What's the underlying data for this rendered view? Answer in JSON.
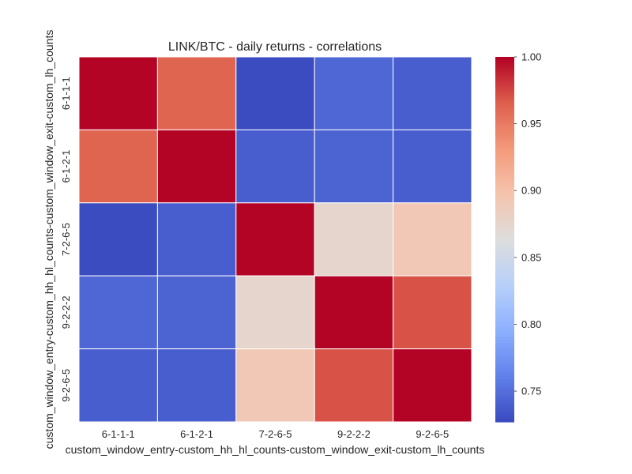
{
  "chart_data": {
    "type": "heatmap",
    "title": "LINK/BTC - daily returns - correlations",
    "xlabel": "custom_window_entry-custom_hh_hl_counts-custom_window_exit-custom_lh_counts",
    "ylabel": "custom_window_entry-custom_hh_hl_counts-custom_window_exit-custom_lh_counts",
    "x_categories": [
      "6-1-1-1",
      "6-1-2-1",
      "7-2-6-5",
      "9-2-2-2",
      "9-2-6-5"
    ],
    "y_categories": [
      "6-1-1-1",
      "6-1-2-1",
      "7-2-6-5",
      "9-2-2-2",
      "9-2-6-5"
    ],
    "values": [
      [
        1.0,
        0.963,
        0.727,
        0.744,
        0.738
      ],
      [
        0.963,
        1.0,
        0.738,
        0.742,
        0.738
      ],
      [
        0.727,
        0.738,
        1.0,
        0.875,
        0.892
      ],
      [
        0.744,
        0.742,
        0.875,
        1.0,
        0.971
      ],
      [
        0.738,
        0.738,
        0.892,
        0.971,
        1.0
      ]
    ],
    "colormap": "coolwarm",
    "vmin": 0.727,
    "vmax": 1.0,
    "colorbar_ticks": [
      "0.75",
      "0.80",
      "0.85",
      "0.90",
      "0.95",
      "1.00"
    ],
    "grid": false,
    "cell_border_color": "#ffffff"
  }
}
